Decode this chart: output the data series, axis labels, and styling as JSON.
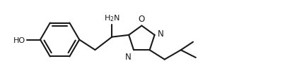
{
  "bg_color": "#ffffff",
  "line_color": "#1a1a1a",
  "line_width": 1.5,
  "font_size": 7.5,
  "figsize": [
    4.03,
    1.15
  ],
  "dpi": 100,
  "xlim": [
    0.0,
    10.5
  ],
  "ylim": [
    0.2,
    3.2
  ]
}
